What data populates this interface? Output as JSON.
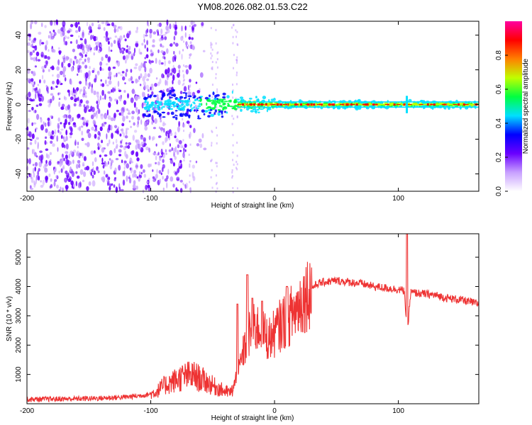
{
  "title": "YM08.2026.082.01.53.C22",
  "chart_data": [
    {
      "type": "heatmap",
      "title": "YM08.2026.082.01.53.C22",
      "xlabel": "Height of straight line (km)",
      "ylabel": "Frequency (Hz)",
      "xlim": [
        -200,
        165
      ],
      "ylim": [
        -50,
        48
      ],
      "xticks": [
        -200,
        -100,
        0,
        100
      ],
      "yticks": [
        -40,
        -20,
        0,
        20,
        40
      ],
      "description_values": {
        "noise_region_x": [
          -200,
          -85
        ],
        "signal_start_x": -105,
        "carrier_frequency_hz": 0,
        "strong_band_start_x": -30
      },
      "colorbar": {
        "label": "Normalized spectral amplitude",
        "range": [
          0,
          1
        ],
        "ticks": [
          "0.0",
          "0.2",
          "0.4",
          "0.6",
          "0.8"
        ],
        "colors": [
          "#ffffff",
          "#c8a0ff",
          "#6a00ff",
          "#0000ff",
          "#00e0ff",
          "#00ff40",
          "#c0ff00",
          "#ff8000",
          "#ff0000",
          "#ff00a0"
        ]
      }
    },
    {
      "type": "line",
      "xlabel": "Height of straight line (km)",
      "ylabel": "SNR (10 * v/v)",
      "xlim": [
        -200,
        165
      ],
      "ylim": [
        0,
        5800
      ],
      "xticks": [
        -200,
        -100,
        0,
        100
      ],
      "yticks": [
        1000,
        2000,
        3000,
        4000,
        5000
      ],
      "color": "#ee3333",
      "series": [
        {
          "name": "SNR",
          "x": [
            -200,
            -180,
            -160,
            -140,
            -120,
            -110,
            -100,
            -95,
            -90,
            -85,
            -80,
            -75,
            -70,
            -65,
            -60,
            -55,
            -50,
            -45,
            -40,
            -35,
            -30,
            -25,
            -20,
            -15,
            -10,
            -5,
            0,
            5,
            10,
            15,
            20,
            25,
            30,
            35,
            40,
            50,
            60,
            70,
            80,
            90,
            100,
            105,
            107,
            110,
            120,
            130,
            140,
            150,
            160,
            165
          ],
          "values": [
            150,
            160,
            170,
            190,
            230,
            270,
            330,
            420,
            600,
            700,
            800,
            900,
            950,
            950,
            850,
            750,
            620,
            520,
            420,
            380,
            900,
            1800,
            2400,
            2600,
            2500,
            2200,
            2400,
            2700,
            2900,
            3100,
            3400,
            3700,
            3950,
            4100,
            4150,
            4200,
            4150,
            4100,
            4000,
            3950,
            3900,
            3850,
            2300,
            3800,
            3750,
            3700,
            3600,
            3550,
            3450,
            3400
          ],
          "spikes": [
            {
              "x": -30,
              "peak": 3400
            },
            {
              "x": -22,
              "peak": 4400
            },
            {
              "x": -18,
              "peak": 3600
            },
            {
              "x": -10,
              "peak": 3500
            },
            {
              "x": 10,
              "peak": 4000
            },
            {
              "x": 107,
              "peak": 5800
            }
          ]
        }
      ]
    }
  ]
}
